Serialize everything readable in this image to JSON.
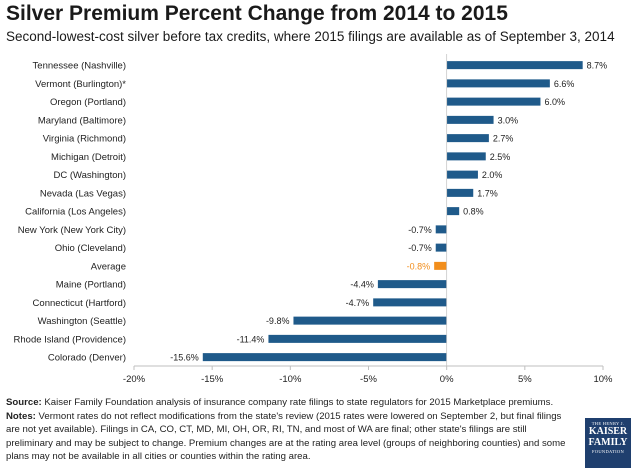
{
  "title": "Silver Premium Percent Change from 2014 to 2015",
  "subtitle": "Second-lowest-cost silver before tax credits, where 2015 filings are available as of September 3, 2014",
  "chart_data": {
    "type": "bar",
    "orientation": "horizontal",
    "categories": [
      "Tennessee (Nashville)",
      "Vermont (Burlington)*",
      "Oregon (Portland)",
      "Maryland (Baltimore)",
      "Virginia (Richmond)",
      "Michigan (Detroit)",
      "DC (Washington)",
      "Nevada (Las Vegas)",
      "California (Los Angeles)",
      "New York (New York City)",
      "Ohio (Cleveland)",
      "Average",
      "Maine (Portland)",
      "Connecticut (Hartford)",
      "Washington (Seattle)",
      "Rhode Island (Providence)",
      "Colorado (Denver)"
    ],
    "values": [
      8.7,
      6.6,
      6.0,
      3.0,
      2.7,
      2.5,
      2.0,
      1.7,
      0.8,
      -0.7,
      -0.7,
      -0.8,
      -4.4,
      -4.7,
      -9.8,
      -11.4,
      -15.6
    ],
    "value_labels": [
      "8.7%",
      "6.6%",
      "6.0%",
      "3.0%",
      "2.7%",
      "2.5%",
      "2.0%",
      "1.7%",
      "0.8%",
      "-0.7%",
      "-0.7%",
      "-0.8%",
      "-4.4%",
      "-4.7%",
      "-9.8%",
      "-11.4%",
      "-15.6%"
    ],
    "highlight_category": "Average",
    "xlim": [
      -20,
      10
    ],
    "xticks": [
      -20,
      -15,
      -10,
      -5,
      0,
      5,
      10
    ],
    "xtick_labels": [
      "-20%",
      "-15%",
      "-10%",
      "-5%",
      "0%",
      "5%",
      "10%"
    ],
    "colors": {
      "bar": "#1f5a8a",
      "highlight": "#f28e1c"
    },
    "grid": false,
    "legend": "none"
  },
  "footer": {
    "source_label": "Source:",
    "source_text": " Kaiser Family Foundation analysis of insurance company rate filings to state regulators for 2015 Marketplace premiums.",
    "notes_label": "Notes:",
    "notes_text": " Vermont rates do not reflect modifications from the state's review (2015 rates were lowered on September 2, but final filings are not yet available). Filings in CA, CO, CT, MD, MI, OH, OR, RI, TN, and most of WA are final; other state's filings are still preliminary and may be subject to change. Premium changes are at the rating area level (groups of neighboring counties) and some plans may not be available in all cities or counties within the rating area."
  },
  "logo": {
    "line1": "THE HENRY J.",
    "line2a": "KAISER",
    "line2b": "FAMILY",
    "line3": "FOUNDATION"
  }
}
